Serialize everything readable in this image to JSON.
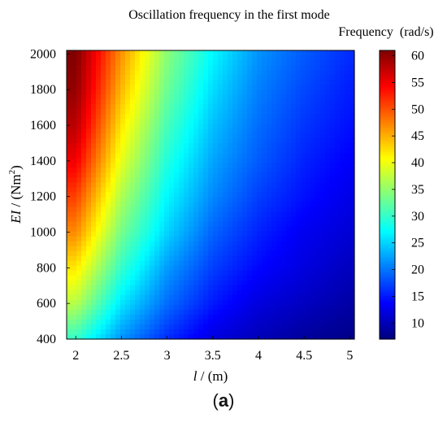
{
  "chart_data": {
    "type": "heatmap",
    "title": "Oscillation frequency in the first mode",
    "xlabel": {
      "symbol": "l",
      "unit": " / (m)"
    },
    "ylabel": {
      "symbol": "EI",
      "unit_prefix": " / (Nm",
      "unit_power": "2",
      "unit_suffix": ")"
    },
    "x": [
      2,
      2.5,
      3,
      3.5,
      4,
      4.5,
      5
    ],
    "y": [
      400,
      600,
      800,
      1000,
      1200,
      1400,
      1600,
      1800,
      2000
    ],
    "xlim": [
      1.9,
      5.05
    ],
    "ylim": [
      400,
      2020
    ],
    "x_ticks": [
      "2",
      "2.5",
      "3",
      "3.5",
      "4",
      "4.5",
      "5"
    ],
    "y_ticks": [
      "400",
      "600",
      "800",
      "1000",
      "1200",
      "1400",
      "1600",
      "1800",
      "2000"
    ],
    "colorbar": {
      "label": "Frequency  (rad/s)",
      "min": 7,
      "max": 61,
      "ticks": [
        "10",
        "15",
        "20",
        "25",
        "30",
        "35",
        "40",
        "45",
        "50",
        "55",
        "60"
      ],
      "colormap": "jet"
    },
    "values_description": "frequency rises with EI and falls with l",
    "values": [
      [
        30,
        21.5,
        16,
        12,
        10,
        8.5,
        7.5
      ],
      [
        37,
        26,
        19.5,
        15,
        12,
        10.5,
        9
      ],
      [
        42,
        30,
        22,
        17,
        14,
        12,
        10.3
      ],
      [
        47,
        33.5,
        25,
        19,
        15.5,
        13,
        11.5
      ],
      [
        51,
        36.5,
        27,
        21,
        17,
        14.5,
        12.5
      ],
      [
        55,
        39.5,
        29,
        22.5,
        18.5,
        15.5,
        13.5
      ],
      [
        58,
        42,
        31,
        24,
        19.5,
        16.5,
        14.5
      ],
      [
        60,
        44.5,
        33,
        25.5,
        20.5,
        17.5,
        15.2
      ],
      [
        61,
        46.5,
        34.5,
        27,
        21.5,
        18.5,
        16
      ]
    ]
  },
  "figure": {
    "panel_label_open": "(",
    "panel_label_letter": "a",
    "panel_label_close": ")"
  }
}
